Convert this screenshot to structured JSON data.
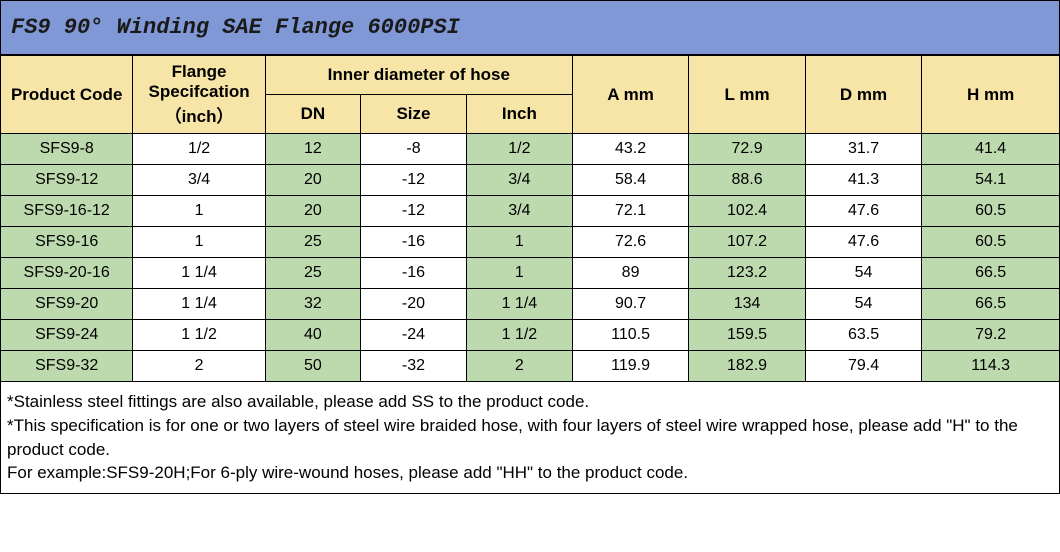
{
  "title": "FS9 90° Winding SAE Flange 6000PSI",
  "colors": {
    "title_bg": "#8099d6",
    "header_bg": "#f6e5a6",
    "green_cell": "#bddaae",
    "white_cell": "#ffffff",
    "border": "#000000"
  },
  "headers": {
    "product_code": "Product Code",
    "flange_spec": "Flange Specifcation（inch）",
    "inner_diameter": "Inner diameter of hose",
    "dn": "DN",
    "size": "Size",
    "inch": "Inch",
    "a": "A mm",
    "l": "L mm",
    "d": "D mm",
    "h": "H mm"
  },
  "rows": [
    {
      "code": "SFS9-8",
      "spec": "1/2",
      "dn": "12",
      "size": "-8",
      "inch": "1/2",
      "a": "43.2",
      "l": "72.9",
      "d": "31.7",
      "h": "41.4"
    },
    {
      "code": "SFS9-12",
      "spec": "3/4",
      "dn": "20",
      "size": "-12",
      "inch": "3/4",
      "a": "58.4",
      "l": "88.6",
      "d": "41.3",
      "h": "54.1"
    },
    {
      "code": "SFS9-16-12",
      "spec": "1",
      "dn": "20",
      "size": "-12",
      "inch": "3/4",
      "a": "72.1",
      "l": "102.4",
      "d": "47.6",
      "h": "60.5"
    },
    {
      "code": "SFS9-16",
      "spec": "1",
      "dn": "25",
      "size": "-16",
      "inch": "1",
      "a": "72.6",
      "l": "107.2",
      "d": "47.6",
      "h": "60.5"
    },
    {
      "code": "SFS9-20-16",
      "spec": "1 1/4",
      "dn": "25",
      "size": "-16",
      "inch": "1",
      "a": "89",
      "l": "123.2",
      "d": "54",
      "h": "66.5"
    },
    {
      "code": "SFS9-20",
      "spec": "1 1/4",
      "dn": "32",
      "size": "-20",
      "inch": "1 1/4",
      "a": "90.7",
      "l": "134",
      "d": "54",
      "h": "66.5"
    },
    {
      "code": "SFS9-24",
      "spec": "1 1/2",
      "dn": "40",
      "size": "-24",
      "inch": "1 1/2",
      "a": "110.5",
      "l": "159.5",
      "d": "63.5",
      "h": "79.2"
    },
    {
      "code": "SFS9-32",
      "spec": "2",
      "dn": "50",
      "size": "-32",
      "inch": "2",
      "a": "119.9",
      "l": "182.9",
      "d": "79.4",
      "h": "114.3"
    }
  ],
  "notes": {
    "line1": "*Stainless steel fittings are also available, please add SS to the product code.",
    "line2": "*This specification is for one or two layers of steel wire braided hose, with four layers of steel wire wrapped hose, please add \"H\" to the product code.",
    "line3": "For example:SFS9-20H;For 6-ply wire-wound hoses, please add \"HH\" to the product code."
  }
}
